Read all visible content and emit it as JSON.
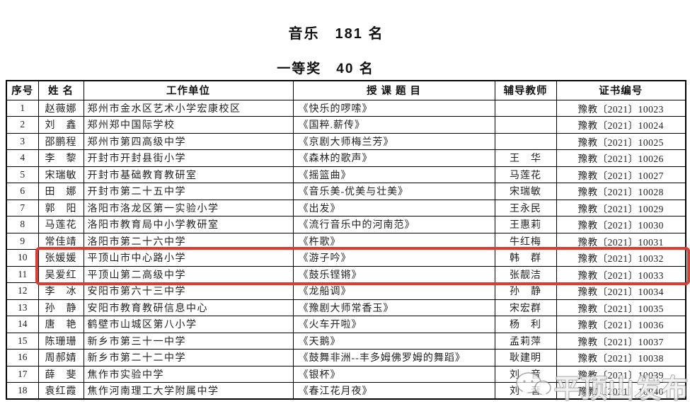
{
  "page": {
    "title": "音乐　181 名",
    "subtitle": "一等奖　40 名"
  },
  "table": {
    "columns": [
      {
        "key": "no",
        "label": "序号"
      },
      {
        "key": "name",
        "label": "姓 名"
      },
      {
        "key": "unit",
        "label": "工作单位"
      },
      {
        "key": "topic",
        "label": "授 课 题 目"
      },
      {
        "key": "teacher",
        "label": "辅导教师"
      },
      {
        "key": "cert",
        "label": "证书编号"
      }
    ],
    "rows": [
      {
        "no": "1",
        "name": "赵薇娜",
        "unit": "郑州市金水区艺术小学宏康校区",
        "topic": "《快乐的啰嗦》",
        "teacher": "",
        "cert": "豫教〔2021〕10023"
      },
      {
        "no": "2",
        "name": "刘　鑫",
        "unit": "郑州郑中国际学校",
        "topic": "《国粹.薪传》",
        "teacher": "",
        "cert": "豫教〔2021〕10024"
      },
      {
        "no": "3",
        "name": "邵鹏程",
        "unit": "郑州市第四高级中学",
        "topic": "《京剧大师梅兰芳》",
        "teacher": "",
        "cert": "豫教〔2021〕10025"
      },
      {
        "no": "4",
        "name": "李　黎",
        "unit": "开封市开封县街小学",
        "topic": "《森林的歌声》",
        "teacher": "王　华",
        "cert": "豫教〔2021〕10026"
      },
      {
        "no": "5",
        "name": "宋瑞敏",
        "unit": "开封市基础教育教研室",
        "topic": "《摇篮曲》",
        "teacher": "马莲花",
        "cert": "豫教〔2021〕10027"
      },
      {
        "no": "6",
        "name": "田　娜",
        "unit": "开封市第二十五中学",
        "topic": "《音乐美-优美与壮美》",
        "teacher": "宋瑞敏",
        "cert": "豫教〔2021〕10028"
      },
      {
        "no": "7",
        "name": "郭　阳",
        "unit": "洛阳市洛龙区第一实验小学",
        "topic": "《出发》",
        "teacher": "王永民",
        "cert": "豫教〔2021〕10029"
      },
      {
        "no": "8",
        "name": "马莲花",
        "unit": "洛阳市教育局中小学教研室",
        "topic": "《流行音乐中的河南范》",
        "teacher": "王惠莉",
        "cert": "豫教〔2021〕10030"
      },
      {
        "no": "9",
        "name": "常佳靖",
        "unit": "洛阳市第二十六中学",
        "topic": "《杵歌》",
        "teacher": "牛红梅",
        "cert": "豫教〔2021〕10031"
      },
      {
        "no": "10",
        "name": "张媛媛",
        "unit": "平顶山市中心路小学",
        "topic": "《游子吟》",
        "teacher": "韩　群",
        "cert": "豫教〔2021〕10032"
      },
      {
        "no": "11",
        "name": "吴爱红",
        "unit": "平顶山第二高级中学",
        "topic": "《鼓乐铿锵》",
        "teacher": "张靓洁",
        "cert": "豫教〔2021〕10033"
      },
      {
        "no": "12",
        "name": "李　冰",
        "unit": "安阳市第六十三中学",
        "topic": "《龙船调》",
        "teacher": "孙　静",
        "cert": "豫教〔2021〕10034"
      },
      {
        "no": "13",
        "name": "孙　静",
        "unit": "安阳市教育教研信息中心",
        "topic": "《豫剧大师常香玉》",
        "teacher": "宋宏群",
        "cert": "豫教〔2021〕10035"
      },
      {
        "no": "14",
        "name": "唐　艳",
        "unit": "鹤壁市山城区第八小学",
        "topic": "《火车开啦》",
        "teacher": "杨　利",
        "cert": "豫教〔2021〕10036"
      },
      {
        "no": "15",
        "name": "陈珊珊",
        "unit": "新乡市第三十一中学",
        "topic": "《天鹅》",
        "teacher": "孟莉萍",
        "cert": "豫教〔2021〕10037"
      },
      {
        "no": "16",
        "name": "周郝婧",
        "unit": "新乡市第二十二中学",
        "topic": "《鼓舞非洲--丰多姆佛罗姆的舞蹈》",
        "teacher": "耿建明",
        "cert": "豫教〔2021〕10038"
      },
      {
        "no": "17",
        "name": "薛　斐",
        "unit": "焦作市实验中学",
        "topic": "《银杯》",
        "teacher": "刘　音",
        "cert": "豫教〔2021〕10039"
      },
      {
        "no": "18",
        "name": "袁红霞",
        "unit": "焦作河南理工大学附属中学",
        "topic": "《春江花月夜》",
        "teacher": "刘　音",
        "cert": "豫教〔2021〕10040"
      }
    ]
  },
  "highlight": {
    "rows": [
      "10",
      "11"
    ],
    "color": "#e23b2e"
  },
  "watermark": {
    "text": "平顶山发布",
    "icon": "chat-bubbles-icon"
  }
}
